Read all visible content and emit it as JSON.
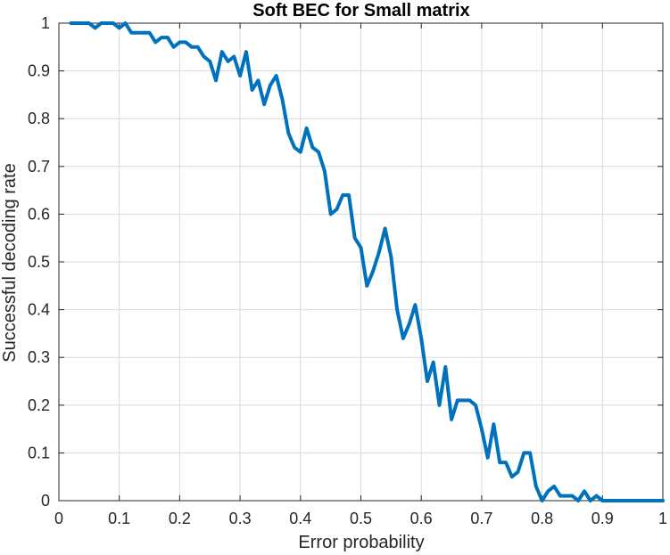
{
  "chart_data": {
    "type": "line",
    "title": "Soft BEC for Small matrix",
    "xlabel": "Error probability",
    "ylabel": "Successful decoding rate",
    "xlim": [
      0,
      1
    ],
    "ylim": [
      0,
      1
    ],
    "grid": true,
    "x_ticks": [
      "0",
      "0.1",
      "0.2",
      "0.3",
      "0.4",
      "0.5",
      "0.6",
      "0.7",
      "0.8",
      "0.9",
      "1"
    ],
    "y_ticks": [
      "0",
      "0.1",
      "0.2",
      "0.3",
      "0.4",
      "0.5",
      "0.6",
      "0.7",
      "0.8",
      "0.9",
      "1"
    ],
    "series": [
      {
        "color": "#0072BD",
        "x": [
          0.02,
          0.03,
          0.04,
          0.05,
          0.06,
          0.07,
          0.08,
          0.09,
          0.1,
          0.11,
          0.12,
          0.13,
          0.14,
          0.15,
          0.16,
          0.17,
          0.18,
          0.19,
          0.2,
          0.21,
          0.22,
          0.23,
          0.24,
          0.25,
          0.26,
          0.27,
          0.28,
          0.29,
          0.3,
          0.31,
          0.32,
          0.33,
          0.34,
          0.35,
          0.36,
          0.37,
          0.38,
          0.39,
          0.4,
          0.41,
          0.42,
          0.43,
          0.44,
          0.45,
          0.46,
          0.47,
          0.48,
          0.49,
          0.5,
          0.51,
          0.52,
          0.53,
          0.54,
          0.55,
          0.56,
          0.57,
          0.58,
          0.59,
          0.6,
          0.61,
          0.62,
          0.63,
          0.64,
          0.65,
          0.66,
          0.67,
          0.68,
          0.69,
          0.7,
          0.71,
          0.72,
          0.73,
          0.74,
          0.75,
          0.76,
          0.77,
          0.78,
          0.79,
          0.8,
          0.81,
          0.82,
          0.83,
          0.84,
          0.85,
          0.86,
          0.87,
          0.88,
          0.89,
          0.9,
          0.91,
          0.92,
          0.93,
          0.94,
          0.95,
          0.96,
          0.97,
          0.98,
          0.99,
          1.0
        ],
        "y": [
          1.0,
          1.0,
          1.0,
          1.0,
          0.99,
          1.0,
          1.0,
          1.0,
          0.99,
          1.0,
          0.98,
          0.98,
          0.98,
          0.98,
          0.96,
          0.97,
          0.97,
          0.95,
          0.96,
          0.96,
          0.95,
          0.95,
          0.93,
          0.92,
          0.88,
          0.94,
          0.92,
          0.93,
          0.89,
          0.94,
          0.86,
          0.88,
          0.83,
          0.87,
          0.89,
          0.84,
          0.77,
          0.74,
          0.73,
          0.78,
          0.74,
          0.73,
          0.69,
          0.6,
          0.61,
          0.64,
          0.64,
          0.55,
          0.53,
          0.45,
          0.48,
          0.52,
          0.57,
          0.51,
          0.4,
          0.34,
          0.37,
          0.41,
          0.34,
          0.25,
          0.29,
          0.2,
          0.28,
          0.17,
          0.21,
          0.21,
          0.21,
          0.2,
          0.15,
          0.09,
          0.16,
          0.08,
          0.08,
          0.05,
          0.06,
          0.1,
          0.1,
          0.03,
          0.0,
          0.02,
          0.03,
          0.01,
          0.01,
          0.01,
          0.0,
          0.02,
          0.0,
          0.01,
          0.0,
          0.0,
          0.0,
          0.0,
          0.0,
          0.0,
          0.0,
          0.0,
          0.0,
          0.0,
          0.0
        ]
      }
    ]
  }
}
